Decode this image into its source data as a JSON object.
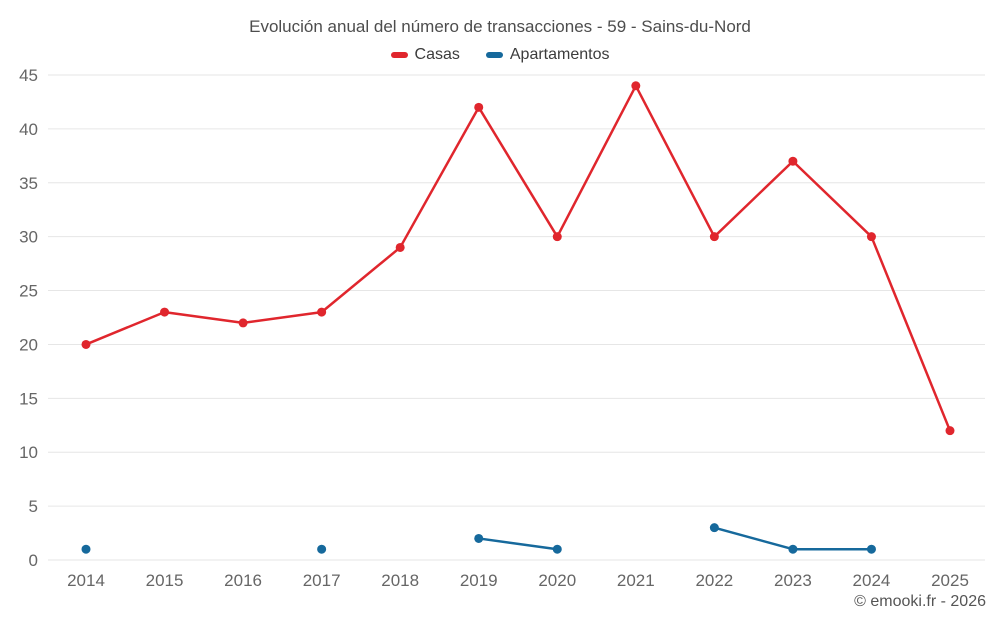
{
  "chart": {
    "footer": "© emooki.fr - 2026"
  },
  "chart_data": {
    "type": "line",
    "title": "Evolución anual del número de transacciones - 59 - Sains-du-Nord",
    "categories": [
      "2014",
      "2015",
      "2016",
      "2017",
      "2018",
      "2019",
      "2020",
      "2021",
      "2022",
      "2023",
      "2024",
      "2025"
    ],
    "series": [
      {
        "name": "Casas",
        "color": "#e0262d",
        "values": [
          20,
          23,
          22,
          23,
          29,
          42,
          30,
          44,
          30,
          37,
          30,
          12
        ]
      },
      {
        "name": "Apartamentos",
        "color": "#16699c",
        "values": [
          1,
          null,
          null,
          1,
          null,
          2,
          1,
          null,
          3,
          1,
          1,
          null
        ]
      }
    ],
    "xlabel": "",
    "ylabel": "",
    "ylim": [
      0,
      45
    ],
    "ytick_step": 5,
    "grid": true,
    "grid_color": "#e6e6e6",
    "axis_text_color": "#666666",
    "legend_position": "top"
  }
}
